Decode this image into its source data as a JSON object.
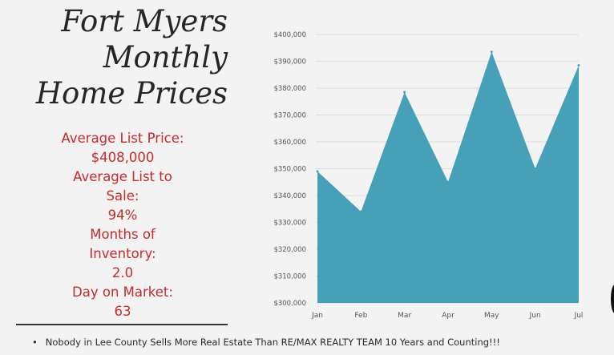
{
  "title_lines": [
    "Fort Myers",
    "Monthly",
    "Home Prices"
  ],
  "stats_lines": [
    "Average List Price:",
    "$408,000",
    "Average List to",
    "Sale:",
    "94%",
    "Months of",
    "Inventory:",
    "2.0",
    "Day on Market:",
    "63"
  ],
  "footer": {
    "bullet": "•",
    "text": "Nobody in Lee County Sells More Real Estate Than RE/MAX REALTY TEAM 10 Years and Counting!!!"
  },
  "colors": {
    "area_fill": "#45a0b8",
    "stats_text": "#c92a2a",
    "gridline": "#dcdcdc"
  },
  "chart_data": {
    "type": "area",
    "title": "",
    "xlabel": "",
    "ylabel": "",
    "categories": [
      "Jan",
      "Feb",
      "Mar",
      "Apr",
      "May",
      "Jun",
      "Jul"
    ],
    "values": [
      349000,
      334000,
      378500,
      345000,
      393500,
      350000,
      388500
    ],
    "ylim": [
      300000,
      400000
    ],
    "yticks": [
      300000,
      310000,
      320000,
      330000,
      340000,
      350000,
      360000,
      370000,
      380000,
      390000,
      400000
    ],
    "ytick_labels": [
      "$300,000",
      "$310,000",
      "$320,000",
      "$330,000",
      "$340,000",
      "$350,000",
      "$360,000",
      "$370,000",
      "$380,000",
      "$390,000",
      "$400,000"
    ],
    "grid": true,
    "legend": "none"
  }
}
